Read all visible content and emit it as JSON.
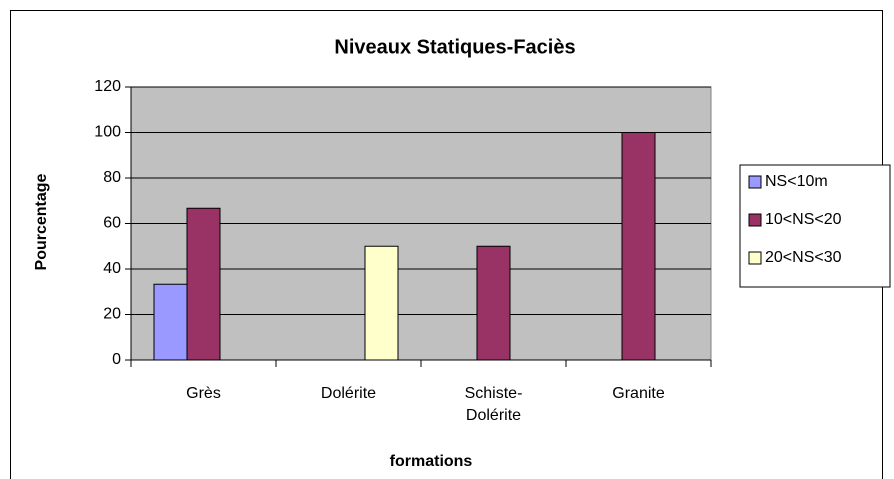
{
  "chart_data": {
    "type": "bar",
    "title": "Niveaux Statiques-Faciès",
    "x_label": "formations",
    "y_label": "Pourcentage",
    "categories": [
      "Grès",
      "Dolérite",
      "Schiste-Dolérite",
      "Granite"
    ],
    "series": [
      {
        "name": "NS<10m",
        "color": "#9999ff",
        "values": [
          33.3,
          null,
          null,
          null
        ]
      },
      {
        "name": "10<NS<20",
        "color": "#993366",
        "values": [
          66.7,
          null,
          50,
          100
        ]
      },
      {
        "name": "20<NS<30",
        "color": "#ffffcc",
        "values": [
          null,
          50,
          null,
          null
        ]
      }
    ],
    "ylim": [
      0,
      120
    ],
    "yticks": [
      0,
      20,
      40,
      60,
      80,
      100,
      120
    ],
    "grid": true,
    "legend": "right"
  }
}
